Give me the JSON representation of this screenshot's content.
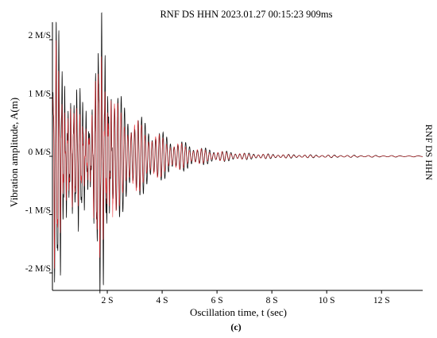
{
  "chart_data": {
    "type": "line",
    "title": "RNF DS HHN 2023.01.27 00:15:23 909ms",
    "xlabel": "Oscillation time, t (sec)",
    "ylabel": "Vibration amplitude, A(m)",
    "right_label": "RNF DS HHN",
    "caption": "(c)",
    "xlim": [
      0,
      13.5
    ],
    "ylim": [
      -2.3,
      2.3
    ],
    "x_ticks": [
      2,
      4,
      6,
      8,
      10,
      12
    ],
    "x_tick_labels": [
      "2 S",
      "4 S",
      "6 S",
      "8 S",
      "10 S",
      "12 S"
    ],
    "y_ticks": [
      2,
      1,
      0,
      -1,
      -2
    ],
    "y_tick_labels": [
      "2 M/S",
      "1 M/S",
      "0 M/S",
      "-1 M/S",
      "-2 M/S"
    ],
    "grid": false,
    "colors": {
      "series_1": "#000000",
      "series_2": "#e8262c",
      "axis": "#000000"
    },
    "series": [
      {
        "color": "#000000",
        "envelope_t": [
          0.0,
          0.1,
          0.2,
          0.4,
          0.6,
          0.8,
          1.0,
          1.2,
          1.4,
          1.6,
          1.75,
          1.9,
          2.1,
          2.4,
          2.8,
          3.2,
          3.6,
          4.0,
          4.5,
          5.0,
          5.5,
          6.0,
          6.5,
          7.0,
          7.5,
          8.0,
          9.0,
          10.0,
          11.0,
          12.0,
          13.5
        ],
        "envelope_amp": [
          1.2,
          2.1,
          2.0,
          1.5,
          1.25,
          1.0,
          1.05,
          0.95,
          0.8,
          1.6,
          2.1,
          2.0,
          1.4,
          1.1,
          0.85,
          0.7,
          0.55,
          0.42,
          0.3,
          0.22,
          0.15,
          0.11,
          0.08,
          0.06,
          0.05,
          0.04,
          0.03,
          0.025,
          0.02,
          0.015,
          0.01
        ]
      },
      {
        "color": "#e8262c",
        "envelope_t": [
          0.0,
          0.1,
          0.2,
          0.4,
          0.6,
          0.8,
          1.0,
          1.2,
          1.4,
          1.6,
          1.75,
          1.9,
          2.1,
          2.4,
          2.8,
          3.2,
          3.6,
          4.0,
          4.5,
          5.0,
          5.5,
          6.0,
          6.5,
          7.0,
          7.5,
          8.0,
          9.0,
          10.0,
          11.0,
          12.0,
          13.5
        ],
        "envelope_amp": [
          1.0,
          1.8,
          1.6,
          1.1,
          0.9,
          0.7,
          0.75,
          0.65,
          0.55,
          1.3,
          1.7,
          1.6,
          1.15,
          0.9,
          0.7,
          0.6,
          0.45,
          0.35,
          0.25,
          0.18,
          0.12,
          0.09,
          0.07,
          0.05,
          0.04,
          0.035,
          0.025,
          0.02,
          0.015,
          0.012,
          0.008
        ]
      }
    ]
  }
}
